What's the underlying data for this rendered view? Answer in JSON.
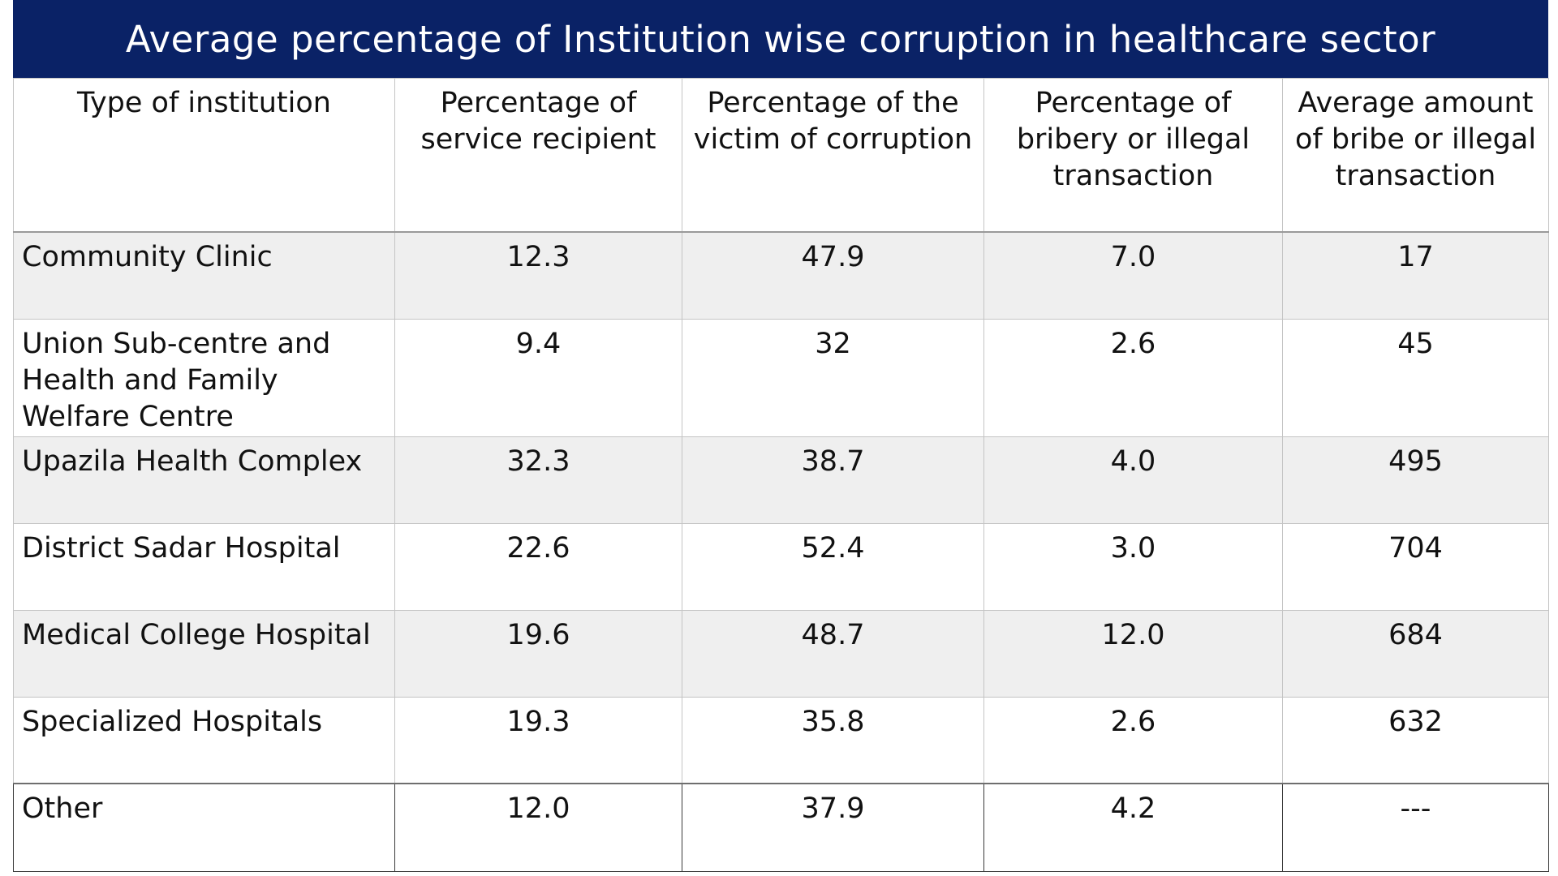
{
  "chart_data": {
    "type": "table",
    "title": "Average percentage of Institution wise corruption in healthcare sector",
    "columns": [
      "Type of institution",
      "Percentage of service recipient",
      "Percentage of the victim of corruption",
      "Percentage of bribery or illegal transaction",
      "Average amount of bribe or illegal transaction"
    ],
    "rows": [
      {
        "institution": "Community Clinic",
        "service_recipient": "12.3",
        "victim": "47.9",
        "bribery": "7.0",
        "avg_amount": "17"
      },
      {
        "institution": "Union Sub-centre and Health and Family Welfare Centre",
        "service_recipient": "9.4",
        "victim": "32",
        "bribery": "2.6",
        "avg_amount": "45"
      },
      {
        "institution": "Upazila Health Complex",
        "service_recipient": "32.3",
        "victim": "38.7",
        "bribery": "4.0",
        "avg_amount": "495"
      },
      {
        "institution": "District Sadar Hospital",
        "service_recipient": "22.6",
        "victim": "52.4",
        "bribery": "3.0",
        "avg_amount": "704"
      },
      {
        "institution": "Medical College Hospital",
        "service_recipient": "19.6",
        "victim": "48.7",
        "bribery": "12.0",
        "avg_amount": "684"
      },
      {
        "institution": "Specialized Hospitals",
        "service_recipient": "19.3",
        "victim": "35.8",
        "bribery": "2.6",
        "avg_amount": "632"
      },
      {
        "institution": "Other",
        "service_recipient": "12.0",
        "victim": "37.9",
        "bribery": "4.2",
        "avg_amount": "---"
      }
    ]
  },
  "colors": {
    "title_background": "#0a2266",
    "title_text": "#ffffff",
    "row_stripe": "#efefef",
    "grid_line": "#c4c4c4"
  }
}
